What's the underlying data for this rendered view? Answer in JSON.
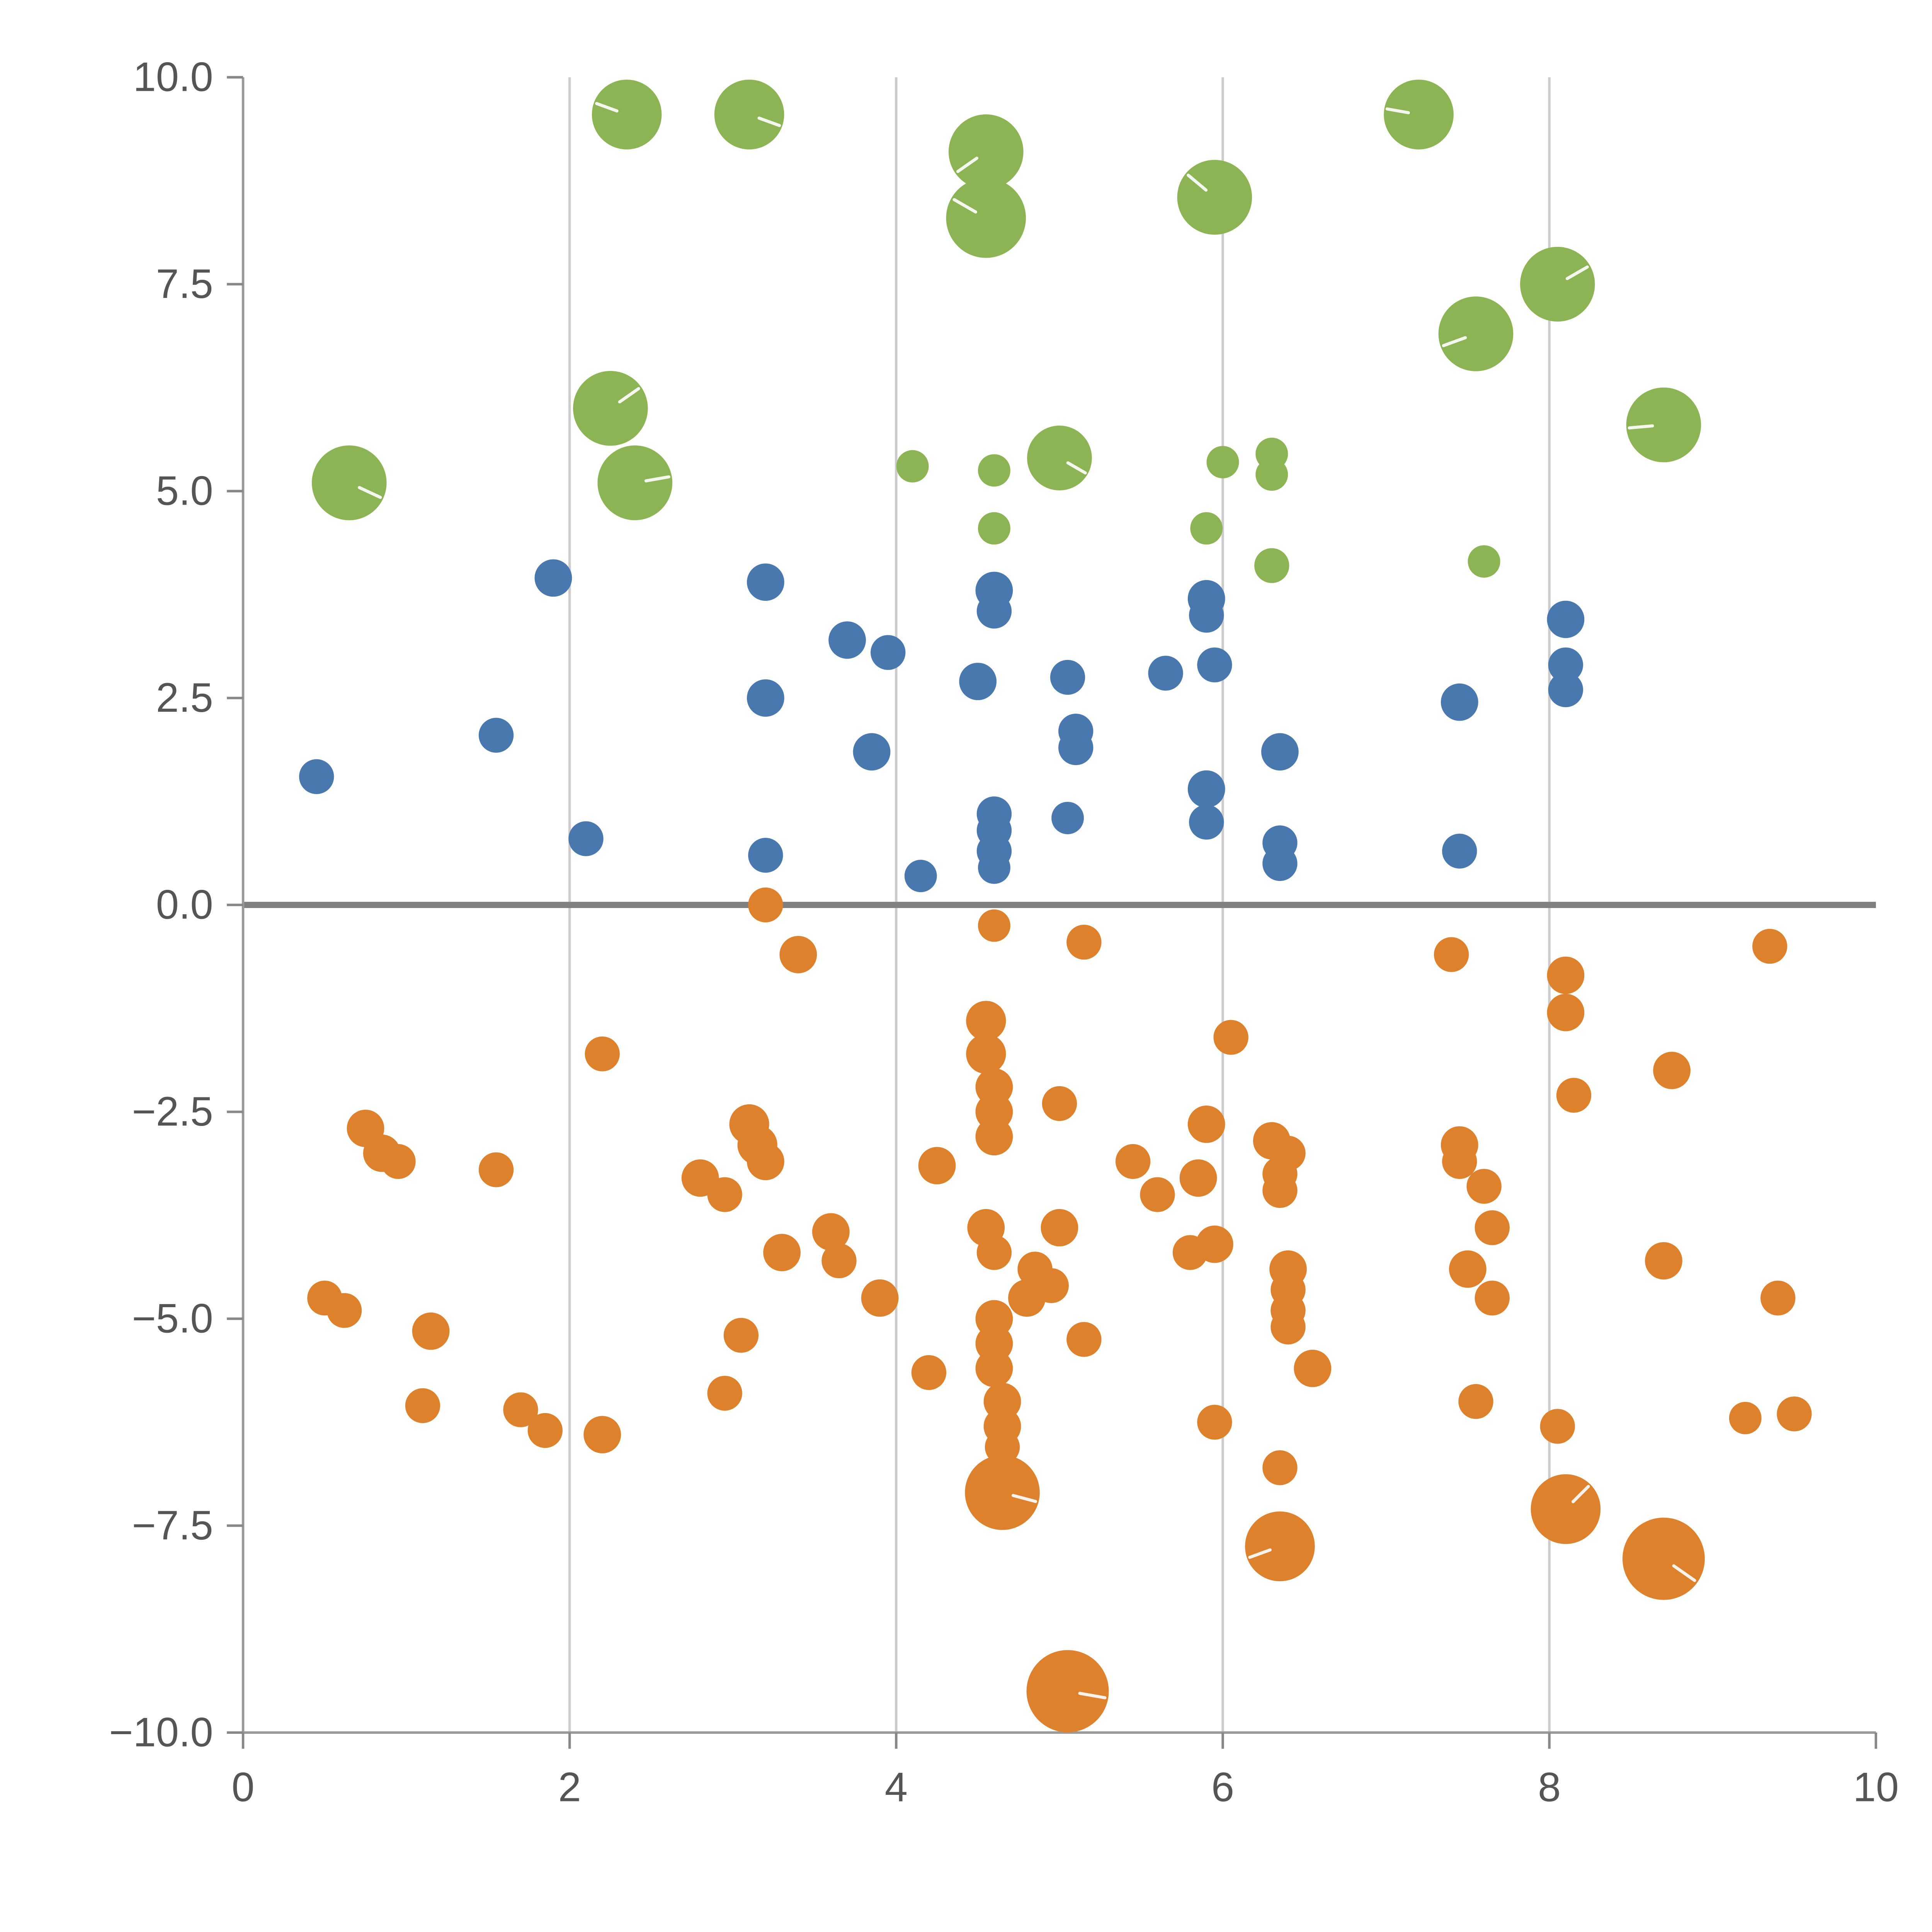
{
  "chart_data": {
    "type": "scatter",
    "title": "",
    "xlabel": "",
    "ylabel": "",
    "xlim": [
      0,
      10
    ],
    "ylim": [
      -10,
      10
    ],
    "xticks": [
      0,
      2,
      4,
      6,
      8,
      10
    ],
    "xtick_labels": [
      "0",
      "2",
      "4",
      "6",
      "8",
      "10"
    ],
    "yticks": [
      -10,
      -7.5,
      -5,
      -2.5,
      0,
      2.5,
      5,
      7.5,
      10
    ],
    "ytick_labels": [
      "−10.0",
      "−7.5",
      "−5.0",
      "−2.5",
      "0.0",
      "2.5",
      "5.0",
      "7.5",
      "10.0"
    ],
    "grid_x": [
      2,
      4,
      6,
      8
    ],
    "grid": "vertical-only",
    "zero_line_y": 0,
    "legend": null,
    "colors": {
      "green": "#8CB454",
      "blue": "#4878AE",
      "orange": "#DE812D",
      "grid": "#CCCCCC",
      "zero_line": "#808080",
      "spine": "#999999",
      "tick_mark": "#888888",
      "tick_text": "#555555",
      "background": "#FFFFFF",
      "bubble_slash": "#FFFFFF"
    },
    "series": [
      {
        "name": "green-bubbles",
        "color_key": "green",
        "note": "points are [x, y, marker_radius, optional_slash_angle_deg]",
        "points": [
          [
            0.65,
            5.1,
            30,
            -25
          ],
          [
            2.25,
            6.0,
            30,
            35
          ],
          [
            2.4,
            5.1,
            30,
            10
          ],
          [
            2.35,
            9.55,
            28,
            160
          ],
          [
            3.1,
            9.55,
            28,
            -20
          ],
          [
            4.55,
            9.1,
            30,
            215
          ],
          [
            4.55,
            8.3,
            32,
            150
          ],
          [
            5.95,
            8.55,
            30,
            140
          ],
          [
            7.2,
            9.55,
            28,
            170
          ],
          [
            7.55,
            6.9,
            30,
            200
          ],
          [
            8.05,
            7.5,
            30,
            30
          ],
          [
            8.7,
            5.8,
            30,
            185
          ],
          [
            4.1,
            5.3,
            13
          ],
          [
            4.6,
            5.25,
            13
          ],
          [
            4.6,
            4.55,
            13
          ],
          [
            5.0,
            5.4,
            26,
            -30
          ],
          [
            6.0,
            5.35,
            13
          ],
          [
            6.3,
            5.45,
            13
          ],
          [
            6.3,
            5.2,
            13
          ],
          [
            5.9,
            4.55,
            13
          ],
          [
            6.3,
            4.1,
            14
          ],
          [
            7.6,
            4.15,
            13
          ]
        ]
      },
      {
        "name": "blue-dots",
        "color_key": "blue",
        "points": [
          [
            0.45,
            1.55,
            14
          ],
          [
            1.55,
            2.05,
            14
          ],
          [
            1.9,
            3.95,
            15
          ],
          [
            2.1,
            0.8,
            14
          ],
          [
            3.2,
            3.9,
            15
          ],
          [
            3.2,
            2.5,
            15
          ],
          [
            3.2,
            0.6,
            14
          ],
          [
            3.7,
            3.2,
            15
          ],
          [
            3.95,
            3.05,
            14
          ],
          [
            3.85,
            1.85,
            15
          ],
          [
            4.15,
            0.35,
            13
          ],
          [
            4.5,
            2.7,
            15
          ],
          [
            4.6,
            3.8,
            15
          ],
          [
            4.6,
            3.55,
            14
          ],
          [
            4.6,
            1.1,
            14
          ],
          [
            4.6,
            0.9,
            14
          ],
          [
            4.6,
            0.65,
            14
          ],
          [
            4.6,
            0.45,
            13
          ],
          [
            5.05,
            2.75,
            14
          ],
          [
            5.1,
            2.1,
            14
          ],
          [
            5.1,
            1.9,
            14
          ],
          [
            5.05,
            1.05,
            13
          ],
          [
            5.65,
            2.8,
            14
          ],
          [
            5.9,
            3.7,
            15
          ],
          [
            5.9,
            3.5,
            14
          ],
          [
            5.95,
            2.9,
            14
          ],
          [
            5.9,
            1.4,
            15
          ],
          [
            5.9,
            1.0,
            14
          ],
          [
            6.35,
            1.85,
            15
          ],
          [
            6.35,
            0.75,
            14
          ],
          [
            6.35,
            0.5,
            14
          ],
          [
            7.45,
            2.45,
            15
          ],
          [
            7.45,
            0.65,
            14
          ],
          [
            8.1,
            3.45,
            15
          ],
          [
            8.1,
            2.9,
            14
          ],
          [
            8.1,
            2.6,
            14
          ]
        ]
      },
      {
        "name": "orange-dots",
        "color_key": "orange",
        "points": [
          [
            3.2,
            0.0,
            14
          ],
          [
            3.4,
            -0.6,
            15
          ],
          [
            2.2,
            -1.8,
            14
          ],
          [
            0.75,
            -2.7,
            15
          ],
          [
            0.85,
            -3.0,
            15
          ],
          [
            0.95,
            -3.1,
            14
          ],
          [
            1.55,
            -3.2,
            14
          ],
          [
            0.5,
            -4.75,
            14
          ],
          [
            0.62,
            -4.9,
            14
          ],
          [
            1.15,
            -5.15,
            15
          ],
          [
            1.1,
            -6.05,
            14
          ],
          [
            1.7,
            -6.1,
            14
          ],
          [
            1.85,
            -6.35,
            14
          ],
          [
            2.2,
            -6.4,
            15
          ],
          [
            2.8,
            -3.3,
            15
          ],
          [
            2.95,
            -3.5,
            14
          ],
          [
            3.1,
            -2.65,
            16
          ],
          [
            3.15,
            -2.9,
            16
          ],
          [
            3.2,
            -3.1,
            15
          ],
          [
            3.05,
            -5.2,
            14
          ],
          [
            2.95,
            -5.9,
            14
          ],
          [
            3.3,
            -4.2,
            15
          ],
          [
            3.6,
            -3.95,
            15
          ],
          [
            3.65,
            -4.3,
            14
          ],
          [
            3.9,
            -4.75,
            15
          ],
          [
            4.2,
            -5.65,
            14
          ],
          [
            4.25,
            -3.15,
            15
          ],
          [
            4.6,
            -0.25,
            13
          ],
          [
            4.55,
            -1.4,
            16
          ],
          [
            4.55,
            -1.8,
            16
          ],
          [
            4.6,
            -2.2,
            15
          ],
          [
            4.6,
            -2.5,
            15
          ],
          [
            4.6,
            -2.8,
            15
          ],
          [
            4.55,
            -3.9,
            15
          ],
          [
            4.6,
            -4.2,
            14
          ],
          [
            4.85,
            -4.4,
            14
          ],
          [
            4.8,
            -4.75,
            15
          ],
          [
            4.95,
            -4.6,
            14
          ],
          [
            4.6,
            -5.0,
            15
          ],
          [
            4.6,
            -5.3,
            15
          ],
          [
            4.6,
            -5.6,
            15
          ],
          [
            4.65,
            -6.0,
            15
          ],
          [
            4.65,
            -6.3,
            15
          ],
          [
            4.65,
            -6.55,
            14
          ],
          [
            4.65,
            -7.1,
            30,
            -15
          ],
          [
            5.15,
            -0.45,
            14
          ],
          [
            5.0,
            -2.4,
            14
          ],
          [
            5.0,
            -3.9,
            15
          ],
          [
            5.15,
            -5.25,
            14
          ],
          [
            5.05,
            -9.5,
            33,
            -10
          ],
          [
            5.45,
            -3.1,
            14
          ],
          [
            5.6,
            -3.5,
            14
          ],
          [
            5.85,
            -3.3,
            15
          ],
          [
            5.9,
            -2.65,
            15
          ],
          [
            5.95,
            -4.1,
            15
          ],
          [
            5.8,
            -4.2,
            14
          ],
          [
            6.05,
            -1.6,
            14
          ],
          [
            6.3,
            -2.85,
            15
          ],
          [
            6.4,
            -3.0,
            14
          ],
          [
            6.35,
            -3.25,
            14
          ],
          [
            6.35,
            -3.45,
            14
          ],
          [
            6.4,
            -4.4,
            15
          ],
          [
            6.4,
            -4.65,
            14
          ],
          [
            6.4,
            -4.9,
            14
          ],
          [
            6.4,
            -5.1,
            14
          ],
          [
            6.55,
            -5.6,
            15
          ],
          [
            5.95,
            -6.25,
            14
          ],
          [
            6.35,
            -6.8,
            14
          ],
          [
            6.35,
            -7.75,
            28,
            200
          ],
          [
            7.4,
            -0.6,
            14
          ],
          [
            7.45,
            -2.9,
            15
          ],
          [
            7.45,
            -3.1,
            14
          ],
          [
            7.6,
            -3.4,
            14
          ],
          [
            7.65,
            -3.9,
            14
          ],
          [
            7.5,
            -4.4,
            15
          ],
          [
            7.65,
            -4.75,
            14
          ],
          [
            7.55,
            -6.0,
            14
          ],
          [
            8.1,
            -0.85,
            15
          ],
          [
            8.1,
            -1.3,
            15
          ],
          [
            8.15,
            -2.3,
            14
          ],
          [
            8.05,
            -6.3,
            14
          ],
          [
            8.1,
            -7.3,
            28,
            45
          ],
          [
            8.75,
            -2.0,
            15
          ],
          [
            8.7,
            -4.3,
            15
          ],
          [
            8.7,
            -7.9,
            33,
            -35
          ],
          [
            9.35,
            -0.5,
            14
          ],
          [
            9.4,
            -4.75,
            14
          ],
          [
            9.2,
            -6.2,
            13
          ],
          [
            9.5,
            -6.15,
            14
          ]
        ]
      }
    ]
  }
}
